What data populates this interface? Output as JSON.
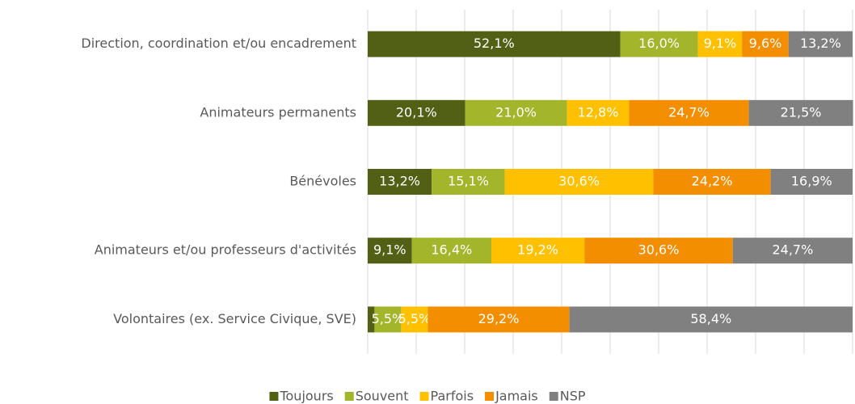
{
  "chart_data": {
    "type": "stacked_bar_horizontal",
    "categories": [
      "Direction, coordination et/ou encadrement",
      "Animateurs permanents",
      "Bénévoles",
      "Animateurs et/ou professeurs d'activités",
      "Volontaires (ex. Service Civique, SVE)"
    ],
    "series": [
      {
        "name": "Toujours",
        "color": "#526016",
        "values": [
          52.1,
          20.1,
          13.2,
          9.1,
          1.4
        ],
        "value_labels": [
          "52,1%",
          "20,1%",
          "13,2%",
          "9,1%",
          null
        ]
      },
      {
        "name": "Souvent",
        "color": "#a2b52b",
        "values": [
          16.0,
          21.0,
          15.1,
          16.4,
          5.5
        ],
        "value_labels": [
          "16,0%",
          "21,0%",
          "15,1%",
          "16,4%",
          "5,5%"
        ]
      },
      {
        "name": "Parfois",
        "color": "#ffc000",
        "values": [
          9.1,
          12.8,
          30.6,
          19.2,
          5.5
        ],
        "value_labels": [
          "9,1%",
          "12,8%",
          "30,6%",
          "19,2%",
          "5,5%"
        ]
      },
      {
        "name": "Jamais",
        "color": "#f28e00",
        "values": [
          9.6,
          24.7,
          24.2,
          30.6,
          29.2
        ],
        "value_labels": [
          "9,6%",
          "24,7%",
          "24,2%",
          "30,6%",
          "29,2%"
        ]
      },
      {
        "name": "NSP",
        "color": "#808080",
        "values": [
          13.2,
          21.5,
          16.9,
          24.7,
          58.4
        ],
        "value_labels": [
          "13,2%",
          "21,5%",
          "16,9%",
          "24,7%",
          "58,4%"
        ]
      }
    ],
    "xlim": [
      0,
      100
    ],
    "xticks": [
      0,
      10,
      20,
      30,
      40,
      50,
      60,
      70,
      80,
      90,
      100
    ],
    "grid": true,
    "legend": "bottom"
  }
}
